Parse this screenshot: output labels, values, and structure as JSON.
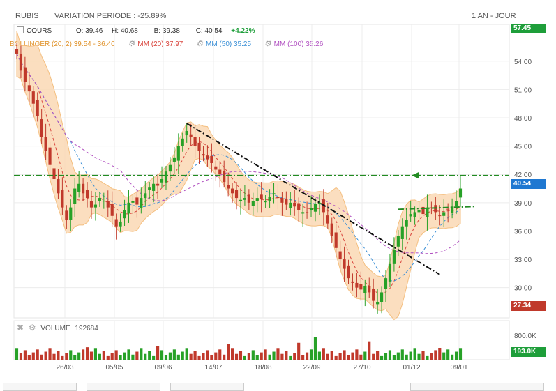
{
  "header": {
    "ticker": "RUBIS",
    "variation": "VARIATION PERIODE : -25.89%",
    "period": "1 AN - JOUR"
  },
  "legend": {
    "cours_label": "COURS",
    "open": "O: 39.46",
    "high": "H: 40.68",
    "low": "B: 39.38",
    "close": "C: 40.54",
    "change": "+4.22%",
    "bollinger": "BOLLINGER (20, 2) 39.54 - 36.40",
    "mm20": "MM (20) 37.97",
    "mm50": "MM (50) 35.25",
    "mm100": "MM (100) 35.26"
  },
  "tags": {
    "high": "57.45",
    "last": "40.54",
    "low": "27.34",
    "vol_high": "193.0K"
  },
  "volume": {
    "label": "VOLUME",
    "value": "192684",
    "max_tick": "800.0K"
  },
  "colors": {
    "up": "#27a127",
    "down": "#c0392b",
    "bollinger_fill": "#fbd9b4",
    "bollinger_line": "#f3b56b",
    "mm20": "#d9463e",
    "mm50": "#3a8fd6",
    "mm100": "#b04fc0",
    "support": "#228b22",
    "trend": "#111111",
    "high_tag": "#1e9e3a",
    "low_tag": "#c0392b"
  },
  "chart_data": {
    "type": "candlestick",
    "x_tick_labels": [
      "26/03",
      "05/05",
      "09/06",
      "14/07",
      "18/08",
      "22/09",
      "27/10",
      "01/12",
      "09/01"
    ],
    "y_tick_labels": [
      "54.00",
      "51.00",
      "48.00",
      "45.00",
      "42.00",
      "39.00",
      "36.00",
      "33.00",
      "30.00"
    ],
    "ylim": [
      26.8,
      57.9
    ],
    "close_series": [
      54.8,
      53.0,
      51.8,
      50.8,
      49.5,
      48.2,
      46.0,
      44.5,
      43.0,
      41.5,
      40.0,
      38.5,
      37.2,
      38.5,
      40.5,
      41.0,
      40.0,
      39.5,
      38.5,
      38.8,
      39.5,
      39.2,
      38.5,
      37.6,
      36.5,
      37.0,
      38.2,
      39.0,
      39.2,
      38.8,
      39.5,
      40.0,
      40.6,
      41.0,
      40.8,
      41.5,
      42.3,
      43.0,
      43.8,
      45.0,
      45.8,
      46.6,
      46.0,
      45.0,
      44.5,
      44.0,
      43.6,
      43.2,
      42.5,
      42.0,
      41.2,
      40.5,
      40.0,
      39.5,
      39.3,
      39.5,
      39.0,
      39.2,
      39.5,
      39.4,
      39.2,
      39.6,
      40.0,
      39.5,
      39.0,
      38.8,
      39.0,
      38.6,
      38.2,
      38.0,
      37.9,
      38.4,
      38.9,
      39.0,
      38.0,
      36.8,
      35.5,
      34.2,
      33.0,
      32.0,
      31.0,
      30.5,
      30.0,
      29.8,
      30.2,
      29.5,
      28.6,
      28.5,
      29.5,
      31.0,
      32.5,
      34.0,
      35.5,
      36.5,
      37.2,
      37.8,
      38.0,
      38.2,
      37.8,
      38.5,
      38.4,
      38.0,
      37.6,
      38.0,
      38.3,
      38.6,
      39.2,
      40.5
    ],
    "volume_max": 800000,
    "last_volume": 192684,
    "annotations": {
      "support_level": 41.9,
      "last_price": 40.54,
      "period_high": 57.45,
      "period_low": 27.34
    }
  }
}
